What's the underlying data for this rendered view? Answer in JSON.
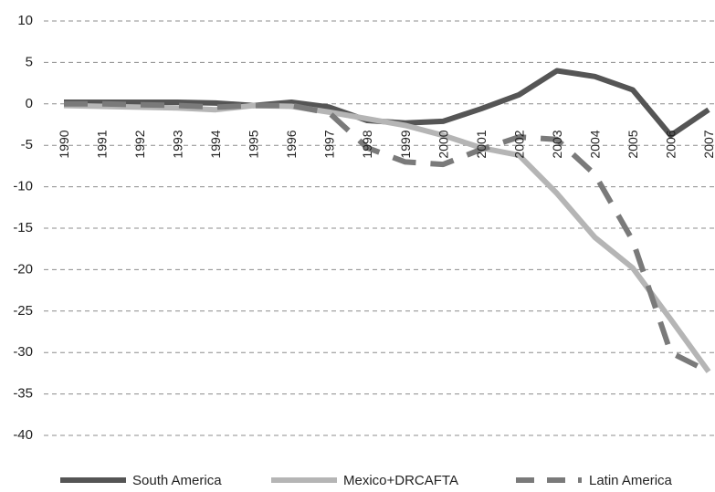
{
  "chart_data": {
    "type": "line",
    "title": "",
    "xlabel": "",
    "ylabel": "",
    "categories": [
      "1990",
      "1991",
      "1992",
      "1993",
      "1994",
      "1995",
      "1996",
      "1997",
      "1998",
      "1999",
      "2000",
      "2001",
      "2002",
      "2003",
      "2004",
      "2005",
      "2006",
      "2007"
    ],
    "ylim": [
      -40,
      10
    ],
    "yticks": [
      10,
      5,
      0,
      -5,
      -10,
      -15,
      -20,
      -25,
      -30,
      -35,
      -40
    ],
    "grid": true,
    "legend_position": "bottom",
    "series": [
      {
        "name": "South America",
        "color": "#555555",
        "dash": "solid",
        "values": [
          0.2,
          0.2,
          0.2,
          0.2,
          0.1,
          -0.2,
          0.2,
          -0.4,
          -2.0,
          -2.3,
          -2.1,
          -0.6,
          1.1,
          4.0,
          3.3,
          1.7,
          -3.8,
          -0.7
        ]
      },
      {
        "name": "Mexico+DRCAFTA",
        "color": "#b5b5b5",
        "dash": "solid",
        "values": [
          -0.2,
          -0.3,
          -0.4,
          -0.5,
          -0.7,
          -0.2,
          -0.3,
          -1.0,
          -1.8,
          -2.6,
          -3.8,
          -5.3,
          -6.2,
          -10.8,
          -16.1,
          -19.8,
          -26.0,
          -32.3
        ]
      },
      {
        "name": "Latin America",
        "color": "#7a7a7a",
        "dash": "dashed",
        "values": [
          0.0,
          0.0,
          -0.1,
          -0.2,
          -0.4,
          -0.2,
          -0.2,
          -1.1,
          -5.3,
          -7.0,
          -7.3,
          -5.5,
          -4.0,
          -4.3,
          -8.5,
          -16.5,
          -30.0,
          -32.3
        ]
      }
    ]
  }
}
